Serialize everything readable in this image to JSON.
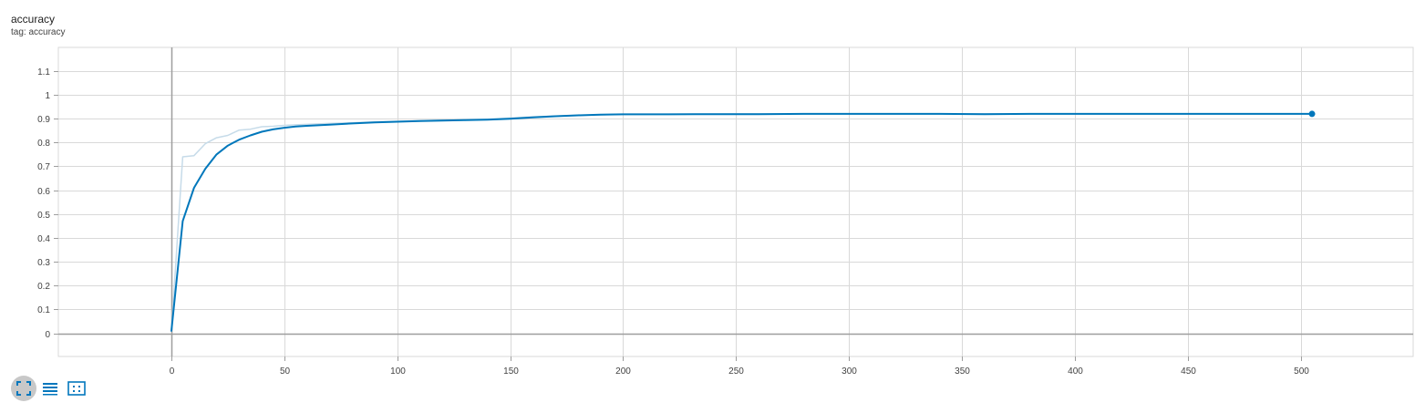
{
  "card": {
    "title": "accuracy",
    "tag": "tag: accuracy"
  },
  "toolbar": {
    "buttons": [
      {
        "icon": "fit-to-domain-icon",
        "active": true
      },
      {
        "icon": "toggle-y-log-scale-icon",
        "active": false
      },
      {
        "icon": "toggle-smoothing-box-icon",
        "active": false
      }
    ]
  },
  "colors": {
    "smoothed_line": "#0077bb",
    "raw_line": "#c6dbe9",
    "grid": "#d9d9d9",
    "zero_axis": "#9e9e9e",
    "active_button_bg": "#c8c8c8"
  },
  "chart_data": {
    "type": "line",
    "title": "",
    "xlabel": "",
    "ylabel": "",
    "xlim": [
      -50,
      550
    ],
    "ylim": [
      -0.1,
      1.2
    ],
    "x_ticks": [
      0,
      50,
      100,
      150,
      200,
      250,
      300,
      350,
      400,
      450,
      500
    ],
    "y_ticks": [
      0,
      0.1,
      0.2,
      0.3,
      0.4,
      0.5,
      0.6,
      0.7,
      0.8,
      0.9,
      1,
      1.1
    ],
    "x_tick_labels": [
      "0",
      "50",
      "100",
      "150",
      "200",
      "250",
      "300",
      "350",
      "400",
      "450",
      "500"
    ],
    "y_tick_labels": [
      "0",
      "0.1",
      "0.2",
      "0.3",
      "0.4",
      "0.5",
      "0.6",
      "0.7",
      "0.8",
      "0.9",
      "1",
      "1.1"
    ],
    "grid": true,
    "series": [
      {
        "style": "raw",
        "x": [
          0,
          5,
          10,
          15,
          20,
          25,
          30,
          35,
          40,
          45,
          50,
          55,
          60,
          70,
          80,
          90,
          100,
          120,
          140,
          160,
          180,
          200,
          250,
          300,
          350,
          400,
          450,
          505
        ],
        "y": [
          0.01,
          0.74,
          0.745,
          0.795,
          0.82,
          0.83,
          0.852,
          0.856,
          0.866,
          0.868,
          0.872,
          0.874,
          0.876,
          0.88,
          0.883,
          0.886,
          0.889,
          0.894,
          0.898,
          0.908,
          0.914,
          0.918,
          0.92,
          0.92,
          0.92,
          0.92,
          0.92,
          0.92
        ]
      },
      {
        "style": "smoothed",
        "x": [
          0,
          5,
          10,
          15,
          20,
          25,
          30,
          35,
          40,
          45,
          50,
          55,
          60,
          70,
          80,
          90,
          100,
          110,
          120,
          130,
          140,
          150,
          160,
          170,
          180,
          190,
          200,
          220,
          240,
          260,
          280,
          300,
          320,
          340,
          360,
          380,
          400,
          420,
          440,
          460,
          480,
          505
        ],
        "y": [
          0.01,
          0.47,
          0.61,
          0.69,
          0.75,
          0.787,
          0.812,
          0.83,
          0.845,
          0.855,
          0.862,
          0.867,
          0.87,
          0.875,
          0.88,
          0.884,
          0.887,
          0.89,
          0.892,
          0.894,
          0.896,
          0.9,
          0.905,
          0.91,
          0.914,
          0.917,
          0.918,
          0.918,
          0.919,
          0.919,
          0.92,
          0.92,
          0.92,
          0.92,
          0.919,
          0.92,
          0.92,
          0.92,
          0.92,
          0.92,
          0.92,
          0.92
        ]
      }
    ],
    "last_point": {
      "x": 505,
      "y": 0.92
    }
  }
}
